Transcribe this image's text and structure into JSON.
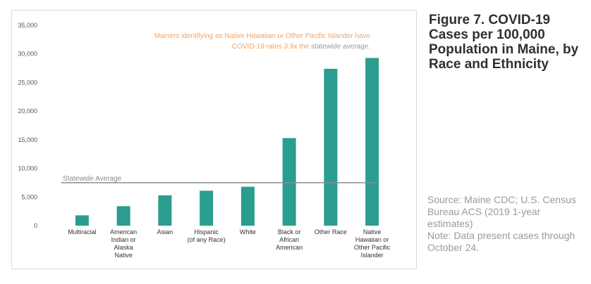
{
  "figure": {
    "title": "Figure 7. COVID-19 Cases per 100,000 Population in Maine, by Race and Ethnicity",
    "source": "Source: Maine CDC; U.S. Census Bureau ACS (2019 1-year estimates)",
    "note": "Note: Data present cases through October 24."
  },
  "colors": {
    "bar": "#2a9d8f",
    "reference_line": "#8c8c8c",
    "annotation_highlight": "#f4a261",
    "annotation_muted": "#9a9a9a",
    "axis_text": "#555555"
  },
  "chart_data": {
    "type": "bar",
    "categories": [
      "Multiracial",
      "American Indian or Alaska Native",
      "Asian",
      "Hispanic (of any Race)",
      "White",
      "Black or African American",
      "Other Race",
      "Native Hawaiian or Other Pacific Islander"
    ],
    "category_lines": [
      [
        "Multiracial"
      ],
      [
        "American",
        "Indian or",
        "Alaska",
        "Native"
      ],
      [
        "Asian"
      ],
      [
        "Hispanic",
        "(of any Race)"
      ],
      [
        "White"
      ],
      [
        "Black or",
        "African",
        "American"
      ],
      [
        "Other Race"
      ],
      [
        "Native",
        "Hawaiian or",
        "Other Pacific",
        "Islander"
      ]
    ],
    "values": [
      1800,
      3400,
      5300,
      6100,
      6800,
      15300,
      27400,
      29300
    ],
    "ylim": [
      0,
      35000
    ],
    "yticks": [
      0,
      5000,
      10000,
      15000,
      20000,
      25000,
      30000,
      35000
    ],
    "ytick_labels": [
      "0",
      "5,000",
      "10,000",
      "15,000",
      "20,000",
      "25,000",
      "30,000",
      "35,000"
    ],
    "reference_line": {
      "label": "Statewide Average",
      "value": 7500
    },
    "annotation": {
      "line1": "Mainers identifying as Native Hawaiian or Other Pacific Islander have",
      "line2_highlight": "COVID-19 rates 3.9x the",
      "line2_muted": "statewide average."
    },
    "grid": false,
    "legend": "none"
  }
}
